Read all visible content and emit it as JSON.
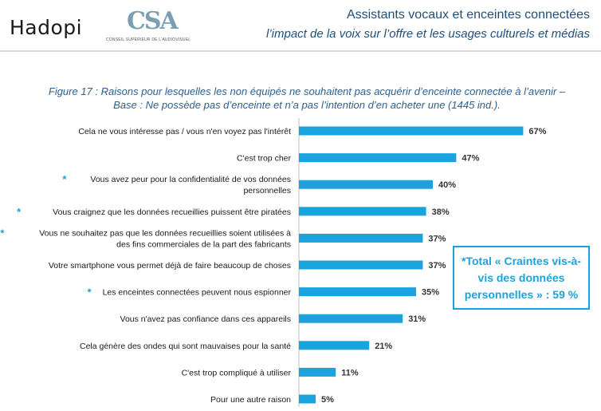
{
  "header": {
    "logo_left": "Hadopi",
    "logo_csa": "CSA",
    "logo_csa_sub": "CONSEIL SUPÉRIEUR DE L'AUDIOVISUEL",
    "title": "Assistants vocaux et enceintes connectées",
    "subtitle": "l’impact de la voix sur l’offre et les usages culturels et médias"
  },
  "figure": {
    "title_line1": "Figure 17 : Raisons pour lesquelles les non équipés ne souhaitent pas acquérir d’enceinte connectée à l’avenir –",
    "title_line2": "Base : Ne possède pas d’enceinte et n’a pas l’intention d’en acheter une (1445 ind.)."
  },
  "callout": {
    "line1": "*Total « Craintes vis-à-",
    "line2": "vis des données",
    "line3": "personnelles » : 59 %"
  },
  "chart_data": {
    "type": "bar",
    "orientation": "horizontal",
    "unit": "%",
    "bar_color": "#1aa3dc",
    "asterisk_color": "#1aa3dc",
    "categories": [
      {
        "lines": [
          "Cela ne vous intéresse pas / vous n'en voyez pas l'intérêt"
        ],
        "value": 67,
        "label": "67%",
        "asterisk": false
      },
      {
        "lines": [
          "C'est trop cher"
        ],
        "value": 47,
        "label": "47%",
        "asterisk": false
      },
      {
        "lines": [
          "Vous avez peur pour la confidentialité de vos données",
          "personnelles"
        ],
        "value": 40,
        "label": "40%",
        "asterisk": true
      },
      {
        "lines": [
          "Vous craignez que les données recueillies puissent être piratées"
        ],
        "value": 38,
        "label": "38%",
        "asterisk": true
      },
      {
        "lines": [
          "Vous ne souhaitez pas que les données recueillies soient utilisées à",
          "des fins commerciales de la part des fabricants"
        ],
        "value": 37,
        "label": "37%",
        "asterisk": true
      },
      {
        "lines": [
          "Votre smartphone vous permet déjà de faire beaucoup de choses"
        ],
        "value": 37,
        "label": "37%",
        "asterisk": false
      },
      {
        "lines": [
          "Les enceintes connectées peuvent nous espionner"
        ],
        "value": 35,
        "label": "35%",
        "asterisk": true
      },
      {
        "lines": [
          "Vous n'avez pas confiance dans ces appareils"
        ],
        "value": 31,
        "label": "31%",
        "asterisk": false
      },
      {
        "lines": [
          "Cela génère des ondes qui sont mauvaises pour la santé"
        ],
        "value": 21,
        "label": "21%",
        "asterisk": false
      },
      {
        "lines": [
          "C'est trop compliqué à utiliser"
        ],
        "value": 11,
        "label": "11%",
        "asterisk": false
      },
      {
        "lines": [
          "Pour une autre raison"
        ],
        "value": 5,
        "label": "5%",
        "asterisk": false
      }
    ]
  }
}
